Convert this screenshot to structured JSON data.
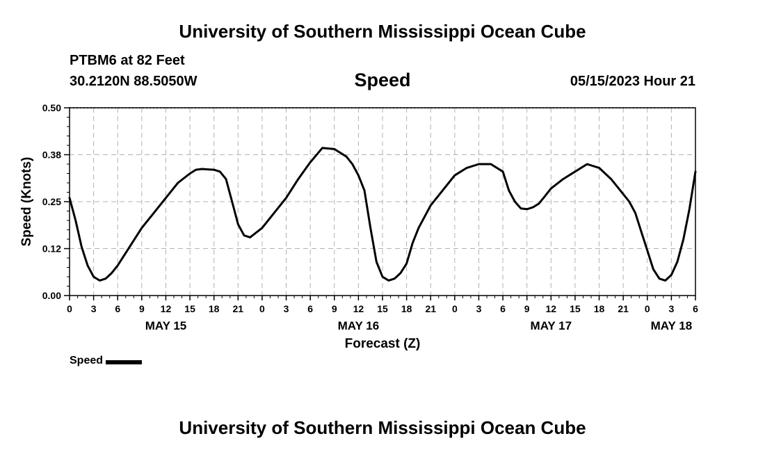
{
  "header": {
    "title": "University of Southern Mississippi Ocean Cube",
    "station": "PTBM6 at 82 Feet",
    "coordinates": "30.2120N  88.5050W",
    "parameter": "Speed",
    "datetime": "05/15/2023 Hour 21"
  },
  "footer": {
    "title": "University of Southern Mississippi Ocean Cube"
  },
  "legend": {
    "label": "Speed"
  },
  "chart_data": {
    "type": "line",
    "title": "Speed",
    "xlabel": "Forecast (Z)",
    "ylabel": "Speed (Knots)",
    "xlim": [
      0,
      78
    ],
    "ylim": [
      0,
      0.5
    ],
    "grid": true,
    "line_color": "#000000",
    "yticks": [
      0.0,
      0.125,
      0.25,
      0.375,
      0.5
    ],
    "ytick_labels": [
      "0.00",
      "0.12",
      "0.25",
      "0.38",
      "0.50"
    ],
    "xtick_labels": [
      "0",
      "3",
      "6",
      "9",
      "12",
      "15",
      "18",
      "21",
      "0",
      "3",
      "6",
      "9",
      "12",
      "15",
      "18",
      "21",
      "0",
      "3",
      "6",
      "9",
      "12",
      "15",
      "18",
      "21",
      "0",
      "3",
      "6"
    ],
    "date_labels": [
      {
        "label": "MAY 15",
        "hour_offset": 12
      },
      {
        "label": "MAY 16",
        "hour_offset": 36
      },
      {
        "label": "MAY 17",
        "hour_offset": 60
      },
      {
        "label": "MAY 18",
        "hour_offset": 75
      }
    ],
    "series": [
      {
        "name": "Speed",
        "x": [
          0,
          0.75,
          1.5,
          2.25,
          3,
          3.75,
          4.5,
          5.25,
          6,
          7.5,
          9,
          10.5,
          12,
          13.5,
          15,
          15.75,
          16.5,
          17.25,
          18,
          18.75,
          19.5,
          20.25,
          21,
          21.75,
          22.5,
          24,
          25.5,
          27,
          28.5,
          30,
          31.5,
          33,
          34.5,
          35.25,
          36,
          36.75,
          37.5,
          38.25,
          39,
          39.75,
          40.5,
          41.25,
          42,
          42.75,
          43.5,
          44.25,
          45,
          46.5,
          48,
          49.5,
          51,
          52.5,
          54,
          54.75,
          55.5,
          56.25,
          57,
          57.75,
          58.5,
          59.25,
          60,
          61.5,
          63,
          64.5,
          66,
          67.5,
          69,
          69.75,
          70.5,
          71.25,
          72,
          72.75,
          73.5,
          74.25,
          75,
          75.75,
          76.5,
          77.25,
          78
        ],
        "values": [
          0.26,
          0.2,
          0.13,
          0.08,
          0.05,
          0.04,
          0.045,
          0.06,
          0.08,
          0.13,
          0.18,
          0.22,
          0.26,
          0.3,
          0.325,
          0.335,
          0.337,
          0.336,
          0.335,
          0.33,
          0.31,
          0.25,
          0.19,
          0.16,
          0.155,
          0.18,
          0.22,
          0.26,
          0.31,
          0.355,
          0.393,
          0.39,
          0.37,
          0.35,
          0.32,
          0.28,
          0.18,
          0.09,
          0.05,
          0.04,
          0.045,
          0.06,
          0.085,
          0.14,
          0.18,
          0.21,
          0.24,
          0.28,
          0.32,
          0.34,
          0.35,
          0.35,
          0.33,
          0.28,
          0.25,
          0.232,
          0.23,
          0.235,
          0.245,
          0.265,
          0.285,
          0.31,
          0.33,
          0.35,
          0.34,
          0.31,
          0.27,
          0.25,
          0.22,
          0.17,
          0.12,
          0.07,
          0.045,
          0.04,
          0.055,
          0.09,
          0.15,
          0.23,
          0.33
        ]
      }
    ]
  }
}
